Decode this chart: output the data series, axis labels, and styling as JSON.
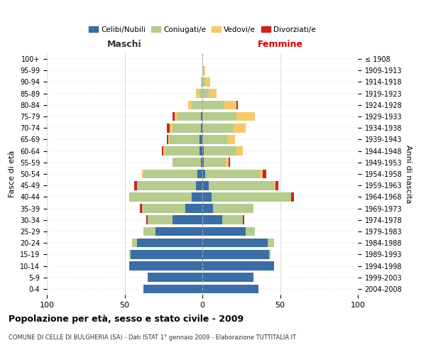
{
  "age_groups": [
    "100+",
    "95-99",
    "90-94",
    "85-89",
    "80-84",
    "75-79",
    "70-74",
    "65-69",
    "60-64",
    "55-59",
    "50-54",
    "45-49",
    "40-44",
    "35-39",
    "30-34",
    "25-29",
    "20-24",
    "15-19",
    "10-14",
    "5-9",
    "0-4"
  ],
  "birth_years": [
    "≤ 1908",
    "1909-1913",
    "1914-1918",
    "1919-1923",
    "1924-1928",
    "1929-1933",
    "1934-1938",
    "1939-1943",
    "1944-1948",
    "1949-1953",
    "1954-1958",
    "1959-1963",
    "1964-1968",
    "1969-1973",
    "1974-1978",
    "1979-1983",
    "1984-1988",
    "1989-1993",
    "1994-1998",
    "1999-2003",
    "2004-2008"
  ],
  "maschi": {
    "celibi": [
      0,
      0,
      0,
      0,
      0,
      1,
      1,
      2,
      2,
      1,
      3,
      4,
      7,
      11,
      19,
      30,
      42,
      46,
      47,
      35,
      38
    ],
    "coniugati": [
      0,
      0,
      1,
      2,
      7,
      15,
      18,
      19,
      22,
      18,
      35,
      38,
      40,
      28,
      16,
      8,
      3,
      1,
      0,
      0,
      0
    ],
    "vedovi": [
      0,
      0,
      0,
      2,
      2,
      2,
      2,
      1,
      1,
      0,
      1,
      0,
      0,
      0,
      0,
      0,
      0,
      0,
      0,
      0,
      0
    ],
    "divorziati": [
      0,
      0,
      0,
      0,
      0,
      1,
      2,
      1,
      1,
      0,
      0,
      2,
      0,
      1,
      1,
      0,
      0,
      0,
      0,
      0,
      0
    ]
  },
  "femmine": {
    "nubili": [
      0,
      0,
      0,
      0,
      0,
      0,
      0,
      0,
      1,
      1,
      2,
      4,
      6,
      7,
      13,
      28,
      42,
      43,
      46,
      33,
      36
    ],
    "coniugate": [
      0,
      1,
      2,
      4,
      14,
      22,
      20,
      16,
      21,
      14,
      35,
      42,
      51,
      26,
      13,
      6,
      4,
      1,
      0,
      0,
      0
    ],
    "vedove": [
      0,
      1,
      3,
      5,
      8,
      12,
      8,
      5,
      4,
      2,
      2,
      1,
      0,
      0,
      0,
      0,
      0,
      0,
      0,
      0,
      0
    ],
    "divorziate": [
      0,
      0,
      0,
      0,
      1,
      0,
      0,
      0,
      0,
      1,
      2,
      2,
      2,
      0,
      1,
      0,
      0,
      0,
      0,
      0,
      0
    ]
  },
  "colors": {
    "celibi": "#3a6ea5",
    "coniugati": "#b5cc8e",
    "vedovi": "#f5c96a",
    "divorziati": "#cc2222"
  },
  "xlim": 100,
  "title": "Popolazione per età, sesso e stato civile - 2009",
  "subtitle": "COMUNE DI CELLE DI BULGHERIA (SA) - Dati ISTAT 1° gennaio 2009 - Elaborazione TUTTITALIA.IT",
  "ylabel_left": "Fasce di età",
  "ylabel_right": "Anni di nascita",
  "xlabel_maschi": "Maschi",
  "xlabel_femmine": "Femmine",
  "bg_color": "#ffffff",
  "grid_color": "#cccccc"
}
